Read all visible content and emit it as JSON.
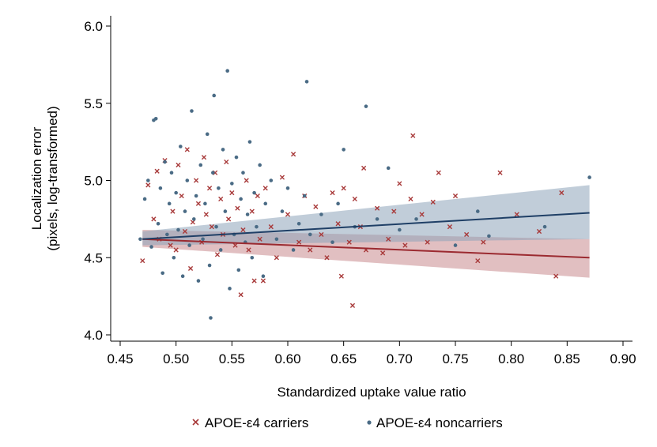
{
  "chart_data": {
    "type": "scatter",
    "title": "",
    "xlabel": "Standardized uptake value ratio",
    "ylabel_line1": "Localization error",
    "ylabel_line2": "(pixels, log-transformed)",
    "xlim": [
      0.45,
      0.9
    ],
    "ylim": [
      4.0,
      6.0
    ],
    "xticks": [
      "0.45",
      "0.50",
      "0.55",
      "0.60",
      "0.65",
      "0.70",
      "0.75",
      "0.80",
      "0.85",
      "0.90"
    ],
    "yticks": [
      "4.0",
      "4.5",
      "5.0",
      "5.5",
      "6.0"
    ],
    "grid": false,
    "legend_position": "bottom",
    "colors": {
      "carriers": "#a83a3a",
      "noncarriers": "#4a6b85",
      "carriers_band": "#c98a8e",
      "noncarriers_band": "#8ea4ba"
    },
    "series": [
      {
        "name": "APOE-ε4 carriers",
        "marker": "x",
        "fit": {
          "x": [
            0.47,
            0.87
          ],
          "y": [
            4.62,
            4.5
          ],
          "ci_lower": [
            4.57,
            4.37
          ],
          "ci_upper": [
            4.68,
            4.62
          ]
        },
        "points": [
          [
            0.47,
            4.48
          ],
          [
            0.475,
            4.97
          ],
          [
            0.48,
            4.75
          ],
          [
            0.483,
            5.06
          ],
          [
            0.485,
            4.62
          ],
          [
            0.49,
            5.13
          ],
          [
            0.495,
            4.58
          ],
          [
            0.497,
            4.8
          ],
          [
            0.5,
            4.55
          ],
          [
            0.502,
            5.1
          ],
          [
            0.505,
            4.9
          ],
          [
            0.508,
            4.67
          ],
          [
            0.51,
            5.2
          ],
          [
            0.513,
            4.43
          ],
          [
            0.515,
            4.73
          ],
          [
            0.518,
            5.0
          ],
          [
            0.52,
            4.85
          ],
          [
            0.523,
            4.6
          ],
          [
            0.525,
            5.15
          ],
          [
            0.527,
            4.78
          ],
          [
            0.53,
            4.95
          ],
          [
            0.532,
            4.7
          ],
          [
            0.535,
            5.05
          ],
          [
            0.537,
            4.52
          ],
          [
            0.54,
            4.88
          ],
          [
            0.542,
            4.65
          ],
          [
            0.545,
            5.12
          ],
          [
            0.547,
            4.75
          ],
          [
            0.55,
            4.92
          ],
          [
            0.553,
            4.58
          ],
          [
            0.555,
            4.82
          ],
          [
            0.558,
            4.26
          ],
          [
            0.56,
            4.68
          ],
          [
            0.563,
            5.0
          ],
          [
            0.565,
            4.55
          ],
          [
            0.568,
            4.8
          ],
          [
            0.57,
            4.35
          ],
          [
            0.573,
            4.9
          ],
          [
            0.575,
            4.62
          ],
          [
            0.578,
            4.35
          ],
          [
            0.58,
            4.95
          ],
          [
            0.585,
            4.7
          ],
          [
            0.59,
            4.5
          ],
          [
            0.595,
            5.02
          ],
          [
            0.6,
            4.78
          ],
          [
            0.605,
            5.17
          ],
          [
            0.61,
            4.6
          ],
          [
            0.615,
            4.9
          ],
          [
            0.62,
            4.55
          ],
          [
            0.625,
            4.83
          ],
          [
            0.63,
            4.65
          ],
          [
            0.635,
            4.5
          ],
          [
            0.64,
            4.92
          ],
          [
            0.645,
            4.72
          ],
          [
            0.648,
            4.38
          ],
          [
            0.65,
            4.95
          ],
          [
            0.655,
            4.6
          ],
          [
            0.658,
            4.19
          ],
          [
            0.66,
            4.88
          ],
          [
            0.665,
            4.7
          ],
          [
            0.668,
            5.08
          ],
          [
            0.67,
            4.55
          ],
          [
            0.68,
            4.82
          ],
          [
            0.685,
            4.53
          ],
          [
            0.69,
            4.62
          ],
          [
            0.695,
            4.8
          ],
          [
            0.7,
            4.98
          ],
          [
            0.705,
            4.58
          ],
          [
            0.71,
            4.88
          ],
          [
            0.712,
            5.29
          ],
          [
            0.72,
            4.78
          ],
          [
            0.725,
            4.6
          ],
          [
            0.73,
            4.86
          ],
          [
            0.735,
            5.05
          ],
          [
            0.745,
            4.7
          ],
          [
            0.75,
            4.9
          ],
          [
            0.76,
            4.65
          ],
          [
            0.77,
            4.48
          ],
          [
            0.775,
            4.6
          ],
          [
            0.79,
            5.05
          ],
          [
            0.805,
            4.78
          ],
          [
            0.825,
            4.67
          ],
          [
            0.84,
            4.38
          ],
          [
            0.845,
            4.92
          ]
        ]
      },
      {
        "name": "APOE-ε4 noncarriers",
        "marker": "o",
        "fit": {
          "x": [
            0.47,
            0.87
          ],
          "y": [
            4.62,
            4.79
          ],
          "ci_lower": [
            4.58,
            4.62
          ],
          "ci_upper": [
            4.67,
            4.97
          ]
        },
        "points": [
          [
            0.468,
            4.62
          ],
          [
            0.472,
            4.88
          ],
          [
            0.475,
            5.0
          ],
          [
            0.478,
            4.57
          ],
          [
            0.48,
            5.39
          ],
          [
            0.482,
            5.4
          ],
          [
            0.484,
            4.72
          ],
          [
            0.486,
            4.95
          ],
          [
            0.488,
            4.4
          ],
          [
            0.49,
            5.12
          ],
          [
            0.492,
            4.65
          ],
          [
            0.494,
            4.85
          ],
          [
            0.496,
            5.05
          ],
          [
            0.498,
            4.5
          ],
          [
            0.5,
            4.92
          ],
          [
            0.502,
            4.68
          ],
          [
            0.504,
            5.22
          ],
          [
            0.506,
            4.38
          ],
          [
            0.508,
            4.8
          ],
          [
            0.51,
            5.0
          ],
          [
            0.512,
            4.58
          ],
          [
            0.514,
            5.45
          ],
          [
            0.516,
            4.75
          ],
          [
            0.518,
            4.9
          ],
          [
            0.52,
            4.35
          ],
          [
            0.522,
            5.1
          ],
          [
            0.524,
            4.62
          ],
          [
            0.526,
            4.85
          ],
          [
            0.528,
            5.3
          ],
          [
            0.53,
            4.45
          ],
          [
            0.531,
            4.11
          ],
          [
            0.533,
            5.05
          ],
          [
            0.534,
            5.55
          ],
          [
            0.536,
            4.7
          ],
          [
            0.538,
            4.95
          ],
          [
            0.54,
            4.55
          ],
          [
            0.542,
            5.2
          ],
          [
            0.544,
            4.8
          ],
          [
            0.546,
            5.71
          ],
          [
            0.548,
            4.3
          ],
          [
            0.55,
            4.98
          ],
          [
            0.552,
            4.65
          ],
          [
            0.554,
            5.15
          ],
          [
            0.556,
            4.42
          ],
          [
            0.558,
            4.88
          ],
          [
            0.56,
            5.05
          ],
          [
            0.562,
            4.6
          ],
          [
            0.564,
            4.78
          ],
          [
            0.566,
            5.25
          ],
          [
            0.568,
            4.5
          ],
          [
            0.57,
            4.92
          ],
          [
            0.572,
            4.7
          ],
          [
            0.575,
            5.1
          ],
          [
            0.578,
            4.38
          ],
          [
            0.58,
            4.85
          ],
          [
            0.585,
            5.0
          ],
          [
            0.59,
            4.62
          ],
          [
            0.595,
            4.8
          ],
          [
            0.6,
            4.95
          ],
          [
            0.605,
            4.55
          ],
          [
            0.61,
            4.72
          ],
          [
            0.615,
            4.9
          ],
          [
            0.617,
            5.64
          ],
          [
            0.62,
            4.65
          ],
          [
            0.63,
            4.78
          ],
          [
            0.64,
            4.6
          ],
          [
            0.645,
            4.85
          ],
          [
            0.65,
            5.2
          ],
          [
            0.66,
            4.7
          ],
          [
            0.67,
            5.48
          ],
          [
            0.68,
            4.75
          ],
          [
            0.69,
            5.08
          ],
          [
            0.7,
            4.68
          ],
          [
            0.715,
            4.75
          ],
          [
            0.75,
            4.58
          ],
          [
            0.77,
            4.8
          ],
          [
            0.78,
            4.64
          ],
          [
            0.83,
            4.7
          ],
          [
            0.87,
            5.02
          ]
        ]
      }
    ]
  }
}
